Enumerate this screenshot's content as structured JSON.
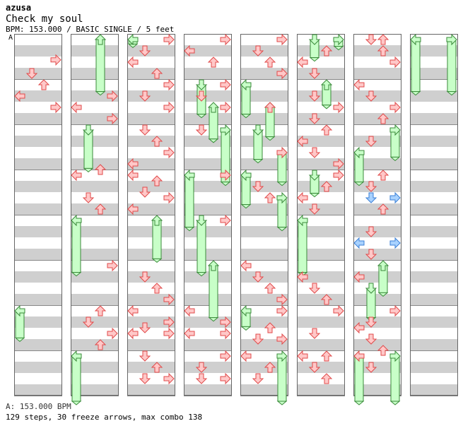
{
  "artist": "azusa",
  "title": "Check my soul",
  "info": "BPM: 153.000 / BASIC SINGLE / 5 feet",
  "bpm_marker": "A",
  "footer_bpm": "A: 153.000 BPM",
  "footer_stats": "129 steps, 30 freeze arrows, max combo 138",
  "colors": {
    "stripe": "#cfcfcf",
    "column_border": "#666666",
    "tap_fill": "#ffc8c8",
    "tap_stroke": "#e04a4a",
    "shock_fill": "#a8d2ff",
    "shock_stroke": "#3a7fd6",
    "freeze_fill": "#c8ffc8",
    "freeze_stroke": "#3a8a3a"
  },
  "lanes": [
    "left",
    "down",
    "up",
    "right"
  ],
  "columns": [
    {
      "taps": [
        [
          3,
          0.45
        ],
        [
          1,
          0.75
        ],
        [
          2,
          1.0
        ],
        [
          0,
          1.25
        ],
        [
          3,
          1.5
        ]
      ],
      "freezes": [
        [
          0,
          6.0,
          6.6
        ]
      ]
    },
    {
      "taps": [
        [
          3,
          1.25
        ],
        [
          0,
          1.5
        ],
        [
          3,
          1.75
        ],
        [
          2,
          2.875
        ],
        [
          0,
          3.0
        ],
        [
          1,
          3.5
        ],
        [
          2,
          3.75
        ],
        [
          3,
          5.0
        ],
        [
          2,
          6.0
        ],
        [
          1,
          6.25
        ],
        [
          3,
          6.5
        ],
        [
          2,
          6.75
        ]
      ],
      "freezes": [
        [
          2,
          0.0,
          1.15
        ],
        [
          1,
          2.0,
          2.85
        ],
        [
          0,
          4.0,
          5.15
        ],
        [
          0,
          7.0,
          8.0
        ]
      ]
    },
    {
      "taps": [
        [
          3,
          0.0
        ],
        [
          1,
          0.25
        ],
        [
          0,
          0.5
        ],
        [
          2,
          0.75
        ],
        [
          3,
          1.0
        ],
        [
          1,
          1.25
        ],
        [
          3,
          1.5
        ],
        [
          1,
          2.0
        ],
        [
          2,
          2.25
        ],
        [
          3,
          2.5
        ],
        [
          0,
          2.75
        ],
        [
          0,
          3.0
        ],
        [
          2,
          3.125
        ],
        [
          1,
          3.375
        ],
        [
          3,
          3.5
        ],
        [
          0,
          3.75
        ],
        [
          1,
          5.25
        ],
        [
          2,
          5.5
        ],
        [
          3,
          5.75
        ],
        [
          0,
          6.0
        ],
        [
          3,
          6.25
        ],
        [
          1,
          6.375
        ],
        [
          0,
          6.5
        ],
        [
          3,
          6.5
        ],
        [
          1,
          7.0
        ],
        [
          2,
          7.25
        ],
        [
          1,
          7.5
        ],
        [
          3,
          7.5
        ]
      ],
      "freezes": [
        [
          0,
          0.0,
          0.1
        ],
        [
          2,
          4.0,
          4.85
        ]
      ]
    },
    {
      "taps": [
        [
          3,
          0.0
        ],
        [
          0,
          0.25
        ],
        [
          2,
          0.5
        ],
        [
          3,
          1.0
        ],
        [
          1,
          1.25
        ],
        [
          3,
          1.5
        ],
        [
          1,
          2.0
        ],
        [
          3,
          3.0
        ],
        [
          3,
          4.0
        ],
        [
          0,
          6.0
        ],
        [
          3,
          6.25
        ],
        [
          0,
          6.5
        ],
        [
          3,
          6.5
        ],
        [
          3,
          7.0
        ],
        [
          1,
          7.25
        ],
        [
          1,
          7.5
        ],
        [
          3,
          7.5
        ]
      ],
      "freezes": [
        [
          1,
          1.0,
          1.65
        ],
        [
          2,
          1.5,
          2.2
        ],
        [
          3,
          2.0,
          3.15
        ],
        [
          0,
          3.0,
          4.15
        ],
        [
          1,
          4.0,
          5.15
        ],
        [
          2,
          5.0,
          6.15
        ]
      ]
    },
    {
      "taps": [
        [
          3,
          0.0
        ],
        [
          1,
          0.25
        ],
        [
          2,
          0.5
        ],
        [
          3,
          0.75
        ],
        [
          2,
          1.5
        ],
        [
          3,
          2.5
        ],
        [
          1,
          3.25
        ],
        [
          2,
          3.5
        ],
        [
          0,
          5.0
        ],
        [
          1,
          5.25
        ],
        [
          2,
          5.5
        ],
        [
          3,
          5.75
        ],
        [
          3,
          6.0
        ],
        [
          2,
          6.375
        ],
        [
          1,
          6.625
        ],
        [
          3,
          6.625
        ],
        [
          0,
          7.0
        ],
        [
          2,
          7.25
        ],
        [
          1,
          7.5
        ]
      ],
      "freezes": [
        [
          0,
          1.0,
          1.65
        ],
        [
          2,
          1.5,
          2.15
        ],
        [
          1,
          2.0,
          2.65
        ],
        [
          3,
          2.5,
          3.15
        ],
        [
          0,
          3.0,
          3.65
        ],
        [
          3,
          3.5,
          4.15
        ],
        [
          0,
          6.0,
          6.35
        ],
        [
          3,
          7.0,
          8.0
        ]
      ]
    },
    {
      "taps": [
        [
          2,
          0.25
        ],
        [
          0,
          0.5
        ],
        [
          1,
          0.75
        ],
        [
          3,
          1.5
        ],
        [
          1,
          1.25
        ],
        [
          1,
          1.75
        ],
        [
          2,
          2.0
        ],
        [
          0,
          2.25
        ],
        [
          1,
          2.5
        ],
        [
          3,
          2.75
        ],
        [
          3,
          3.0
        ],
        [
          2,
          3.25
        ],
        [
          0,
          3.5
        ],
        [
          1,
          3.75
        ],
        [
          0,
          5.25
        ],
        [
          1,
          5.5
        ],
        [
          2,
          5.75
        ],
        [
          3,
          6.0
        ],
        [
          1,
          6.5
        ],
        [
          0,
          7.0
        ],
        [
          2,
          7.0
        ],
        [
          1,
          7.25
        ],
        [
          2,
          7.5
        ]
      ],
      "freezes": [
        [
          3,
          0.0,
          0.15
        ],
        [
          1,
          0.0,
          0.4
        ],
        [
          2,
          1.0,
          1.45
        ],
        [
          1,
          3.0,
          3.4
        ],
        [
          0,
          4.0,
          5.15
        ]
      ]
    },
    {
      "taps": [
        [
          1,
          0.0
        ],
        [
          2,
          0.0
        ],
        [
          2,
          0.25
        ],
        [
          3,
          0.5
        ],
        [
          0,
          1.0
        ],
        [
          1,
          1.25
        ],
        [
          3,
          1.5
        ],
        [
          2,
          1.75
        ],
        [
          1,
          2.25
        ],
        [
          2,
          3.0
        ],
        [
          1,
          3.25
        ],
        [
          2,
          3.75
        ],
        [
          1,
          4.25
        ],
        [
          1,
          4.75
        ],
        [
          0,
          5.25
        ],
        [
          1,
          6.25
        ],
        [
          3,
          6.0
        ],
        [
          0,
          6.375
        ],
        [
          1,
          6.625
        ],
        [
          2,
          6.875
        ],
        [
          0,
          7.0
        ],
        [
          1,
          7.25
        ]
      ],
      "shocks": [
        [
          1,
          3.5
        ],
        [
          3,
          3.5
        ],
        [
          0,
          4.5
        ],
        [
          3,
          4.5
        ]
      ],
      "freezes": [
        [
          3,
          2.0,
          2.6
        ],
        [
          0,
          2.5,
          3.15
        ],
        [
          2,
          5.0,
          5.6
        ],
        [
          1,
          5.5,
          6.15
        ],
        [
          0,
          7.0,
          8.0
        ],
        [
          3,
          7.0,
          8.0
        ]
      ]
    },
    {
      "taps": [],
      "freezes": [
        [
          0,
          0.0,
          1.15
        ],
        [
          3,
          0.0,
          1.15
        ]
      ]
    }
  ]
}
